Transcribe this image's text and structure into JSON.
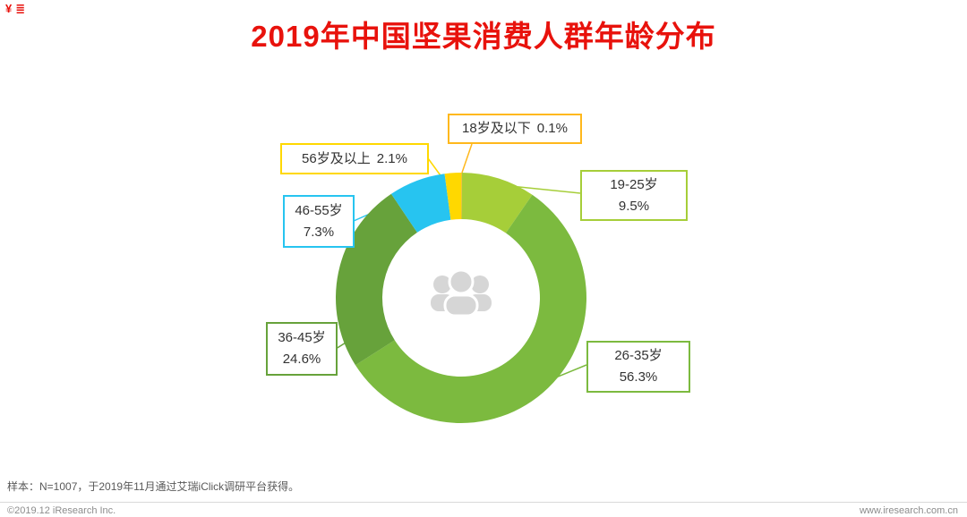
{
  "page": {
    "corner_marks": [
      "¥",
      "≣"
    ],
    "sample_note": "样本：N=1007，于2019年11月通过艾瑞iClick调研平台获得。",
    "footer_left": "©2019.12 iResearch Inc.",
    "footer_right": "www.iresearch.com.cn"
  },
  "chart_data": {
    "type": "pie",
    "donut": true,
    "title": "2019年中国坚果消费人群年龄分布",
    "title_color": "#E8120C",
    "center_icon": "people-group-icon",
    "legend_position": "callout-labels",
    "start_angle_deg": 0,
    "direction": "clockwise",
    "segments": [
      {
        "label": "18岁及以下",
        "value": 0.1,
        "pct": "0.1%",
        "color": "#FFB81C"
      },
      {
        "label": "19-25岁",
        "value": 9.5,
        "pct": "9.5%",
        "color": "#A6CE39"
      },
      {
        "label": "26-35岁",
        "value": 56.3,
        "pct": "56.3%",
        "color": "#7CBA3F"
      },
      {
        "label": "36-45岁",
        "value": 24.6,
        "pct": "24.6%",
        "color": "#67A23B"
      },
      {
        "label": "46-55岁",
        "value": 7.3,
        "pct": "7.3%",
        "color": "#27C4F0"
      },
      {
        "label": "56岁及以上",
        "value": 2.1,
        "pct": "2.1%",
        "color": "#FFD800"
      }
    ]
  }
}
